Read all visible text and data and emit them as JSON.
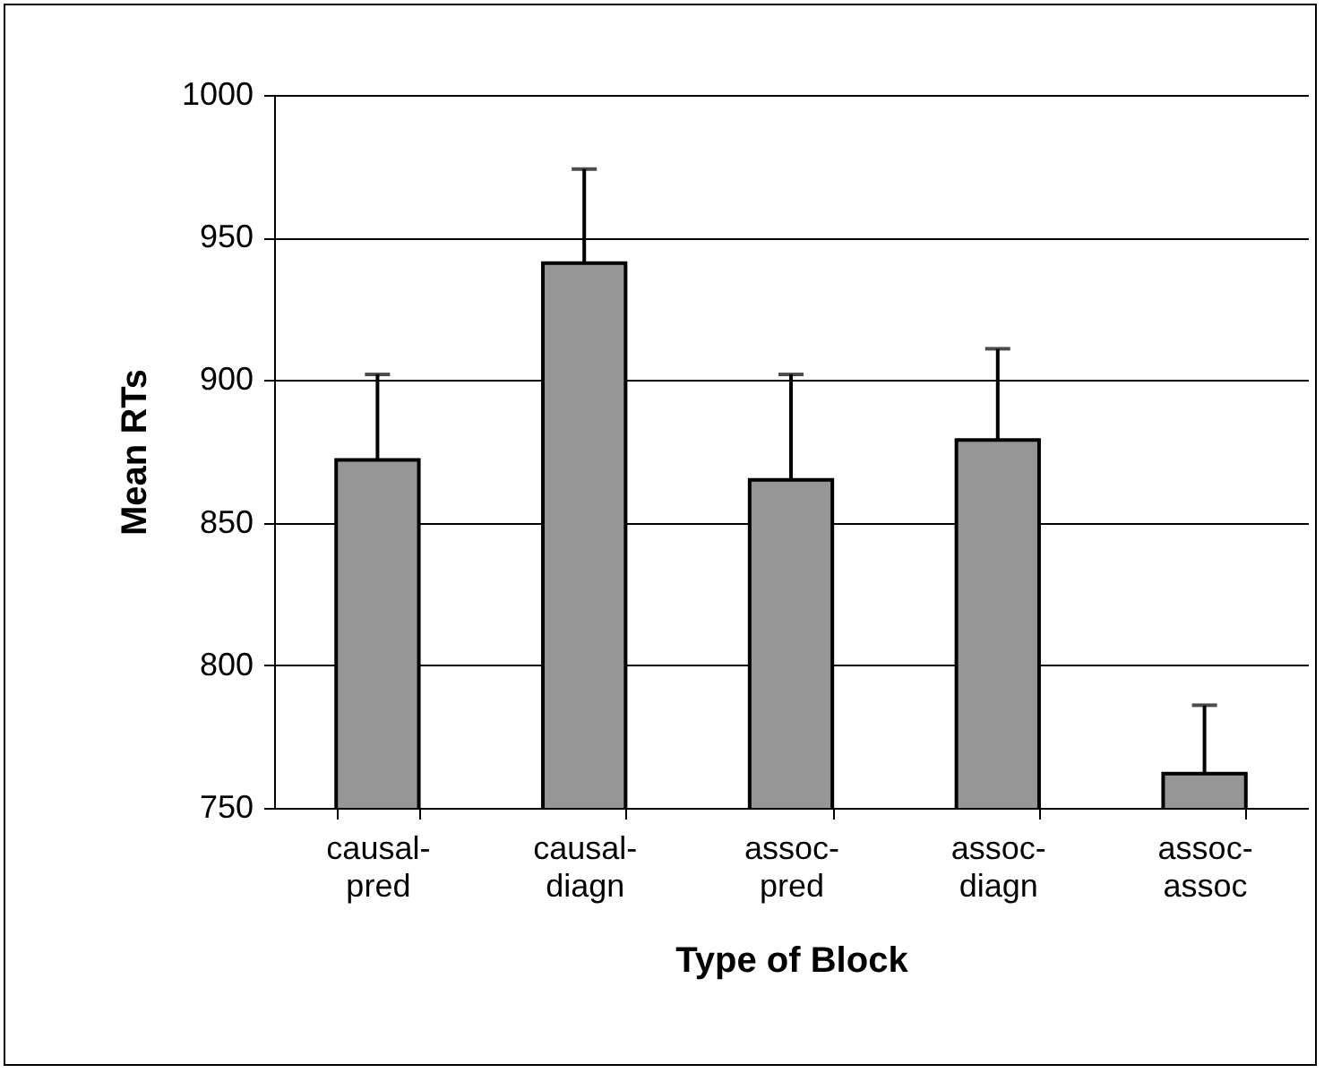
{
  "chart_data": {
    "type": "bar",
    "xlabel": "Type of Block",
    "ylabel": "Mean RTs",
    "categories": [
      "causal-pred",
      "causal-diagn",
      "assoc-pred",
      "assoc-diagn",
      "assoc-assoc"
    ],
    "values": [
      872,
      941,
      865,
      879,
      762
    ],
    "errors": [
      30,
      33,
      37,
      32,
      24
    ],
    "color": "#969696",
    "ylim": [
      750,
      1000
    ],
    "yticks": [
      750,
      800,
      850,
      900,
      950,
      1000
    ],
    "grid": "y"
  }
}
